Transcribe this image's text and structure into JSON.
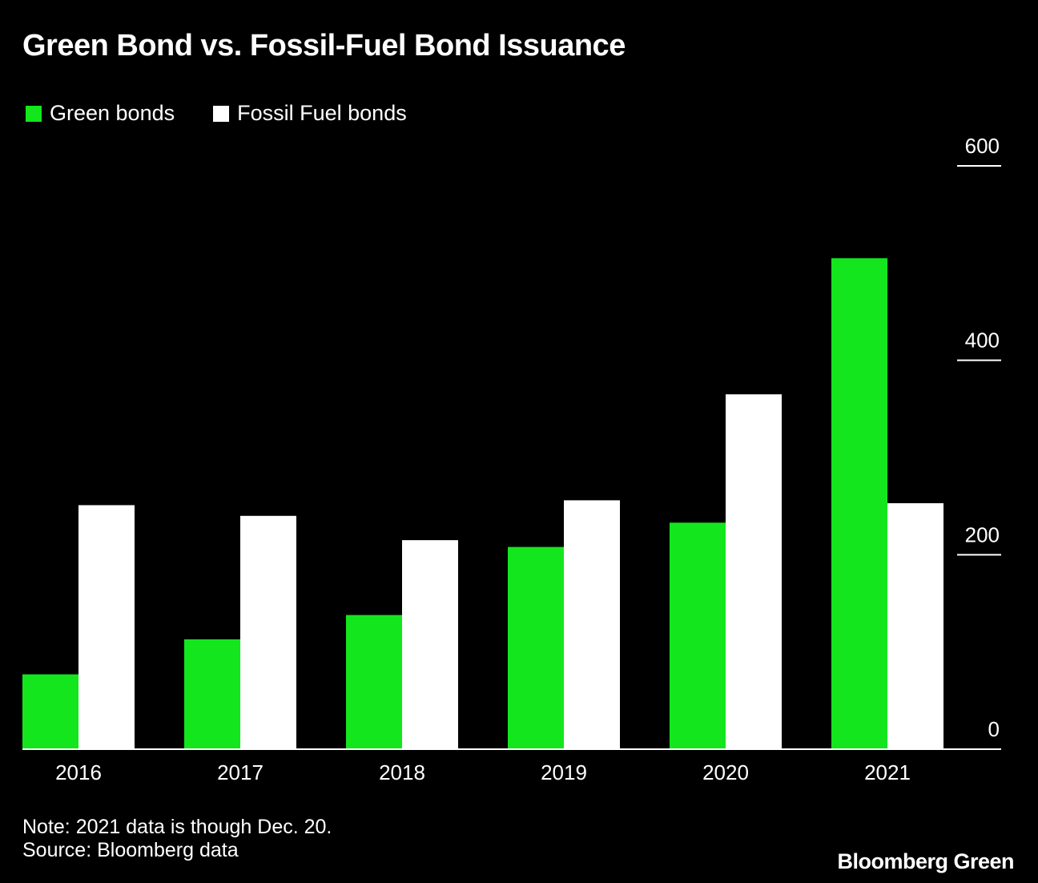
{
  "chart_data": {
    "type": "bar",
    "title": "Green Bond vs. Fossil-Fuel Bond Issuance",
    "categories": [
      "2016",
      "2017",
      "2018",
      "2019",
      "2020",
      "2021"
    ],
    "series": [
      {
        "name": "Green bonds",
        "color": "#14e61e",
        "values": [
          77,
          113,
          138,
          208,
          233,
          505
        ]
      },
      {
        "name": "Fossil Fuel bonds",
        "color": "#ffffff",
        "values": [
          251,
          240,
          215,
          256,
          365,
          253
        ]
      }
    ],
    "ylim": [
      0,
      600
    ],
    "yticks": [
      0,
      200,
      400,
      600
    ],
    "y_axis_position": "right",
    "legend": "top-left",
    "xlabel": "",
    "ylabel": ""
  },
  "footer": {
    "note": "Note: 2021 data is though Dec. 20.",
    "source": "Source: Bloomberg data",
    "brand": "Bloomberg Green"
  }
}
